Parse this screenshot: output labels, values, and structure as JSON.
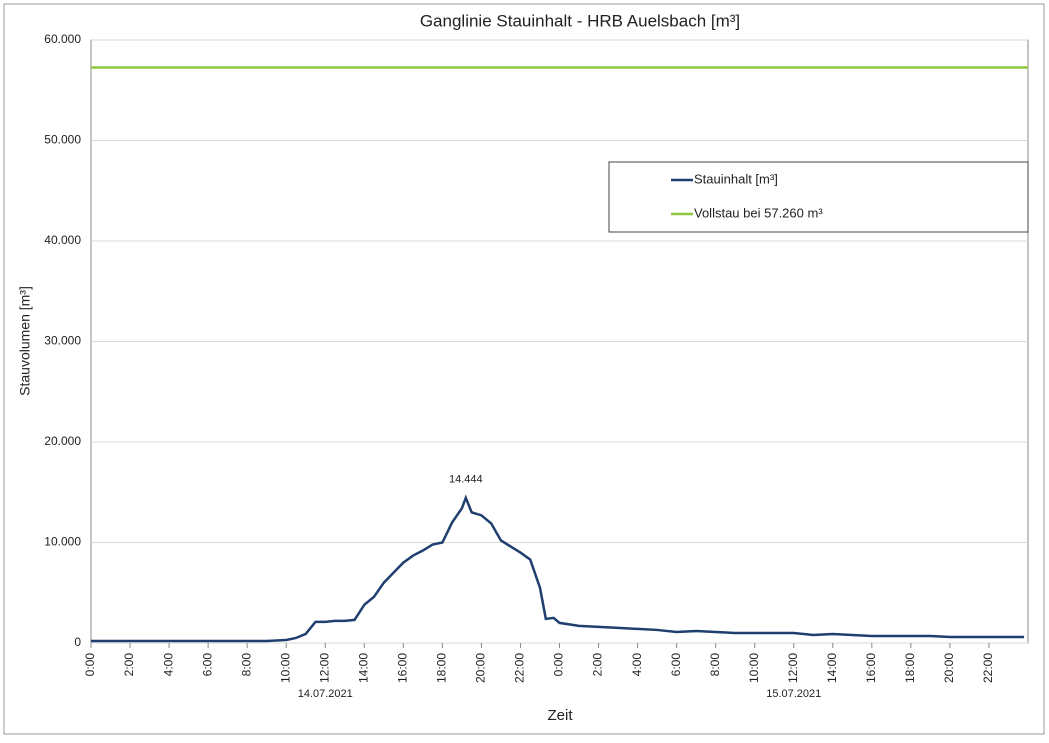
{
  "chart_data": {
    "type": "line",
    "title": "Ganglinie Stauinhalt - HRB Auelsbach  [m³]",
    "x_label": "Zeit",
    "y_label": "Stauvolumen [m³]",
    "xlim": [
      0,
      48
    ],
    "ylim": [
      0,
      60000
    ],
    "xticks": [
      {
        "value": 0,
        "label": "0:00"
      },
      {
        "value": 2,
        "label": "2:00"
      },
      {
        "value": 4,
        "label": "4:00"
      },
      {
        "value": 6,
        "label": "6:00"
      },
      {
        "value": 8,
        "label": "8:00"
      },
      {
        "value": 10,
        "label": "10:00"
      },
      {
        "value": 12,
        "label": "12:00"
      },
      {
        "value": 14,
        "label": "14:00"
      },
      {
        "value": 16,
        "label": "16:00"
      },
      {
        "value": 18,
        "label": "18:00"
      },
      {
        "value": 20,
        "label": "20:00"
      },
      {
        "value": 22,
        "label": "22:00"
      },
      {
        "value": 24,
        "label": "0:00"
      },
      {
        "value": 26,
        "label": "2:00"
      },
      {
        "value": 28,
        "label": "4:00"
      },
      {
        "value": 30,
        "label": "6:00"
      },
      {
        "value": 32,
        "label": "8:00"
      },
      {
        "value": 34,
        "label": "10:00"
      },
      {
        "value": 36,
        "label": "12:00"
      },
      {
        "value": 38,
        "label": "14:00"
      },
      {
        "value": 40,
        "label": "16:00"
      },
      {
        "value": 42,
        "label": "18:00"
      },
      {
        "value": 44,
        "label": "20:00"
      },
      {
        "value": 46,
        "label": "22:00"
      }
    ],
    "yticks": [
      0,
      {
        "value": 10000,
        "label": "10.000"
      },
      {
        "value": 20000,
        "label": "20.000"
      },
      {
        "value": 30000,
        "label": "30.000"
      },
      {
        "value": 40000,
        "label": "40.000"
      },
      {
        "value": 50000,
        "label": "50.000"
      },
      {
        "value": 60000,
        "label": "60.000"
      }
    ],
    "grid": true,
    "legend": "upper right",
    "x_group_labels": [
      {
        "x": 12,
        "label": "14.07.2021"
      },
      {
        "x": 36,
        "label": "15.07.2021"
      }
    ],
    "annotations": [
      {
        "x": 19.2,
        "y": 14444,
        "label": "14.444"
      }
    ],
    "series": [
      {
        "name": "Stauinhalt [m³]",
        "color": "#1f3f6e",
        "x": [
          0,
          1,
          2,
          3,
          4,
          5,
          6,
          7,
          8,
          9,
          10,
          10.5,
          11,
          11.5,
          12,
          12.5,
          13,
          13.5,
          14,
          14.5,
          15,
          15.5,
          16,
          16.5,
          17,
          17.5,
          18,
          18.5,
          19,
          19.2,
          19.5,
          20,
          20.5,
          21,
          21.5,
          22,
          22.5,
          23,
          23.3,
          23.7,
          24,
          25,
          26,
          27,
          28,
          29,
          30,
          31,
          32,
          33,
          34,
          35,
          36,
          37,
          38,
          39,
          40,
          41,
          42,
          43,
          44,
          45,
          46,
          47,
          47.8
        ],
        "values": [
          200,
          200,
          200,
          200,
          200,
          200,
          200,
          200,
          200,
          200,
          300,
          500,
          900,
          2100,
          2100,
          2200,
          2200,
          2300,
          3800,
          4600,
          6000,
          7000,
          8000,
          8700,
          9200,
          9800,
          10000,
          12000,
          13400,
          14444,
          13000,
          12700,
          11900,
          10200,
          9600,
          9000,
          8300,
          5500,
          2400,
          2500,
          2000,
          1700,
          1600,
          1500,
          1400,
          1300,
          1100,
          1200,
          1100,
          1000,
          1000,
          1000,
          1000,
          800,
          900,
          800,
          700,
          700,
          700,
          700,
          600,
          600,
          600,
          600,
          600
        ]
      },
      {
        "name": "Vollstau bei 57.260 m³",
        "color": "#8dc63f",
        "x": [
          0,
          48
        ],
        "values": [
          57260,
          57260
        ]
      }
    ]
  }
}
